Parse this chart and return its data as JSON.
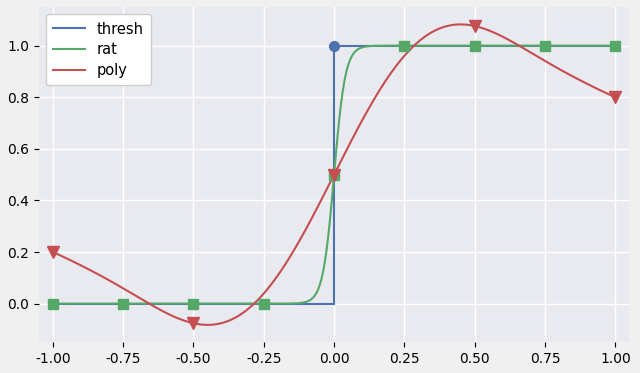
{
  "bg_color": "#e8eaf0",
  "thresh_color": "#4c72b0",
  "rat_color": "#55a868",
  "poly_color": "#c44e52",
  "xlim": [
    -1.05,
    1.05
  ],
  "ylim": [
    -0.15,
    1.15
  ],
  "xticks": [
    -1.0,
    -0.75,
    -0.5,
    -0.25,
    0.0,
    0.25,
    0.5,
    0.75,
    1.0
  ],
  "yticks": [
    0.0,
    0.2,
    0.4,
    0.6,
    0.8,
    1.0
  ],
  "rat_markers_x": [
    -1.0,
    -0.75,
    -0.5,
    -0.25,
    0.0,
    0.25,
    0.5,
    0.75,
    1.0
  ],
  "poly_markers_x": [
    -1.0,
    -0.5,
    0.0,
    0.5,
    1.0
  ],
  "thresh_marker_x": [
    0.0
  ],
  "thresh_marker_y": [
    1.0
  ]
}
